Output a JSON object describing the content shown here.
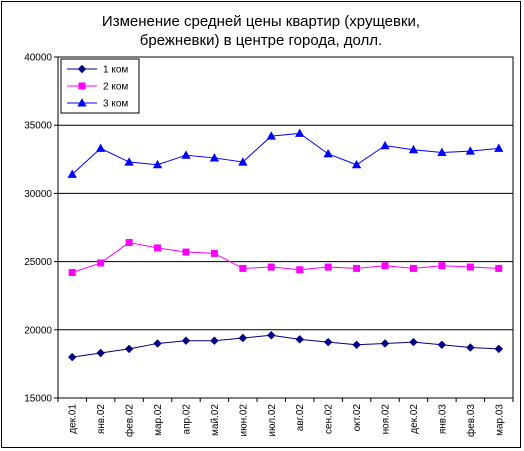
{
  "chart_data": {
    "type": "line",
    "title_line1": "Изменение средней цены квартир (хрущевки,",
    "title_line2": "брежневки) в центре города, долл.",
    "categories": [
      "дек.01",
      "янв.02",
      "фев.02",
      "мар.02",
      "апр.02",
      "май.02",
      "июн.02",
      "июл.02",
      "авг.02",
      "сен.02",
      "окт.02",
      "ноя.02",
      "дек.02",
      "янв.03",
      "фев.03",
      "мар.03"
    ],
    "y_ticks": [
      "15000",
      "20000",
      "25000",
      "30000",
      "35000",
      "40000"
    ],
    "ylim": [
      15000,
      40000
    ],
    "grid": "horizontal at 20000, 25000, 30000, 35000",
    "legend_position": "top-left",
    "series": [
      {
        "name": "1 ком",
        "color": "#000080",
        "marker": "diamond",
        "values": [
          18000,
          18300,
          18600,
          19000,
          19200,
          19200,
          19400,
          19600,
          19300,
          19100,
          18900,
          19000,
          19100,
          18900,
          18700,
          18600
        ]
      },
      {
        "name": "2 ком",
        "color": "#ff00ff",
        "marker": "square",
        "values": [
          24200,
          24900,
          26400,
          26000,
          25700,
          25600,
          24500,
          24600,
          24400,
          24600,
          24500,
          24700,
          24500,
          24700,
          24600,
          24500
        ]
      },
      {
        "name": "3 ком",
        "color": "#0000ff",
        "marker": "triangle",
        "values": [
          31400,
          33300,
          32300,
          32100,
          32800,
          32600,
          32300,
          34200,
          34400,
          32900,
          32100,
          33500,
          33200,
          33000,
          33100,
          33300
        ]
      }
    ]
  }
}
